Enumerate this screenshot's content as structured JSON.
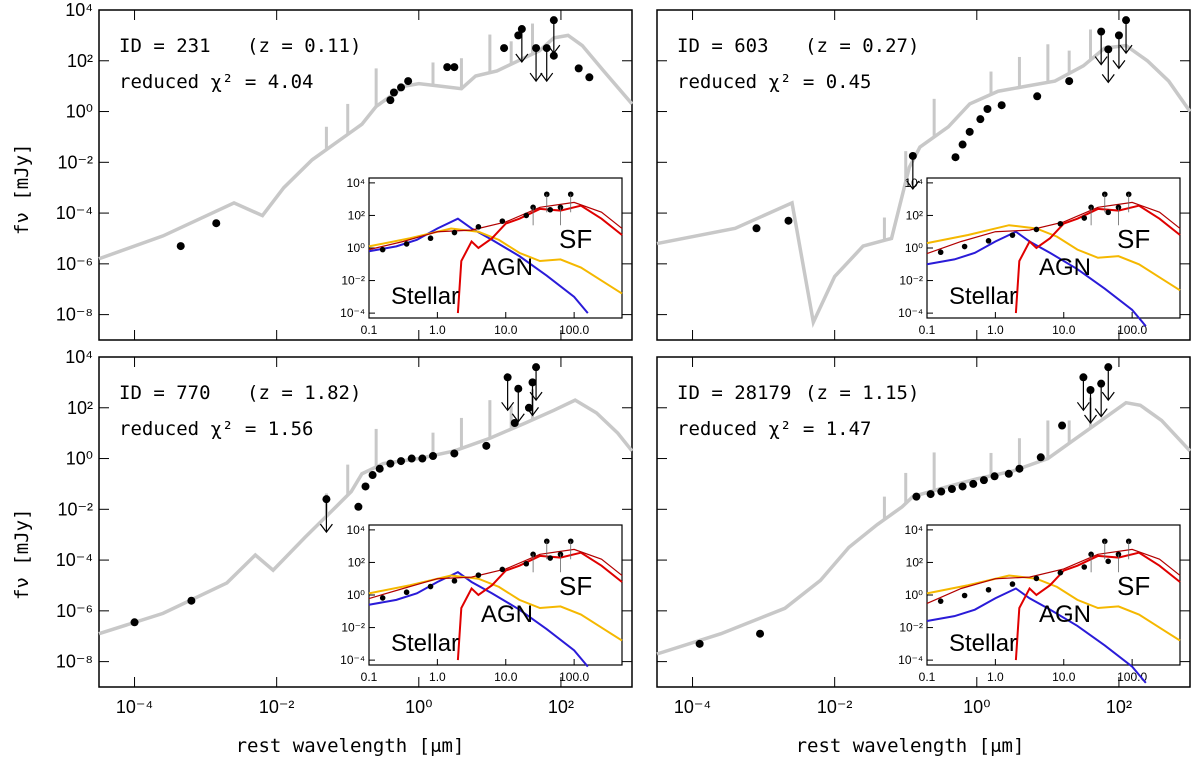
{
  "figure": {
    "xlabel": "rest wavelength [μm]",
    "ylabel": "fν [mJy]",
    "xlim_log10": [
      -4.5,
      3
    ],
    "ylim_log10": [
      -9,
      4
    ]
  },
  "colors": {
    "model": "#c8c8c8",
    "points": "#000000",
    "stellar": "#2a1bd8",
    "agn": "#f5b800",
    "sf": "#e00000",
    "sf_dark": "#b20000"
  },
  "chart_data": [
    {
      "type": "scatter",
      "id_text": "ID = 231",
      "z_text": "(z = 0.11)",
      "chi_text": "reduced χ² = 4.04",
      "x_log10": [
        -3.35,
        -2.85,
        -0.4,
        -0.35,
        -0.25,
        -0.15,
        0.4,
        0.5,
        1.2,
        1.4,
        1.9,
        2.25,
        2.4
      ],
      "y_log10": [
        -5.3,
        -4.4,
        0.45,
        0.75,
        0.95,
        1.2,
        1.75,
        1.75,
        2.5,
        3.0,
        2.2,
        1.7,
        1.35
      ],
      "upper_limits": [
        {
          "x": 1.45,
          "y": 3.25
        },
        {
          "x": 1.65,
          "y": 2.5
        },
        {
          "x": 1.8,
          "y": 2.5
        },
        {
          "x": 1.9,
          "y": 3.6
        }
      ],
      "inset": {
        "x_ticks": [
          "0.1",
          "1.0",
          "10.0",
          "100.0"
        ],
        "y_ticks": [
          "10⁴",
          "10²",
          "10⁰",
          "10⁻²",
          "10⁻⁴"
        ],
        "labels": {
          "stellar": "Stellar",
          "agn": "AGN",
          "sf": "SF"
        }
      }
    },
    {
      "type": "scatter",
      "id_text": "ID = 603",
      "z_text": "(z = 0.27)",
      "chi_text": "reduced χ² = 0.45",
      "x_log10": [
        -3.1,
        -2.65,
        -0.3,
        -0.2,
        -0.1,
        0.05,
        0.15,
        0.35,
        0.85,
        1.3
      ],
      "y_log10": [
        -4.6,
        -4.3,
        -1.8,
        -1.3,
        -0.8,
        -0.3,
        0.1,
        0.25,
        0.6,
        1.2
      ],
      "upper_limits": [
        {
          "x": -0.9,
          "y": -1.75
        },
        {
          "x": 1.75,
          "y": 3.15
        },
        {
          "x": 1.85,
          "y": 2.45
        },
        {
          "x": 2.0,
          "y": 3.0
        },
        {
          "x": 2.1,
          "y": 3.6
        }
      ],
      "inset": {
        "x_ticks": [
          "0.1",
          "1.0",
          "10.0",
          "100.0"
        ],
        "y_ticks": [
          "10⁴",
          "10²",
          "10⁰",
          "10⁻²",
          "10⁻⁴"
        ],
        "labels": {
          "stellar": "Stellar",
          "agn": "AGN",
          "sf": "SF"
        }
      }
    },
    {
      "type": "scatter",
      "id_text": "ID = 770",
      "z_text": "(z = 1.82)",
      "chi_text": "reduced χ² = 1.56",
      "x_log10": [
        -4.0,
        -3.2,
        -0.85,
        -0.75,
        -0.65,
        -0.55,
        -0.4,
        -0.25,
        -0.1,
        0.05,
        0.2,
        0.5,
        0.95,
        1.35,
        1.55
      ],
      "y_log10": [
        -6.45,
        -5.6,
        -1.9,
        -1.1,
        -0.65,
        -0.4,
        -0.2,
        -0.1,
        0,
        0,
        0.1,
        0.2,
        0.5,
        1.4,
        2.0
      ],
      "upper_limits": [
        {
          "x": -1.3,
          "y": -1.6
        },
        {
          "x": 1.25,
          "y": 3.2
        },
        {
          "x": 1.4,
          "y": 2.75
        },
        {
          "x": 1.6,
          "y": 3.0
        },
        {
          "x": 1.65,
          "y": 3.6
        }
      ],
      "inset": {
        "x_ticks": [
          "0.1",
          "1.0",
          "10.0",
          "100.0"
        ],
        "y_ticks": [
          "10⁴",
          "10²",
          "10⁰",
          "10⁻²",
          "10⁻⁴"
        ],
        "labels": {
          "stellar": "Stellar",
          "agn": "AGN",
          "sf": "SF"
        }
      }
    },
    {
      "type": "scatter",
      "id_text": "ID = 28179",
      "z_text": "(z = 1.15)",
      "chi_text": "reduced χ² = 1.47",
      "x_log10": [
        -3.9,
        -3.05,
        -0.85,
        -0.65,
        -0.5,
        -0.35,
        -0.2,
        -0.05,
        0.1,
        0.25,
        0.45,
        0.6,
        0.9,
        1.2
      ],
      "y_log10": [
        -7.3,
        -6.9,
        -1.5,
        -1.4,
        -1.3,
        -1.2,
        -1.1,
        -1.0,
        -0.85,
        -0.7,
        -0.6,
        -0.4,
        0.05,
        1.3
      ],
      "upper_limits": [
        {
          "x": 1.5,
          "y": 3.2
        },
        {
          "x": 1.6,
          "y": 2.7
        },
        {
          "x": 1.75,
          "y": 2.95
        },
        {
          "x": 1.85,
          "y": 3.6
        }
      ],
      "inset": {
        "x_ticks": [
          "0.1",
          "1.0",
          "10.0",
          "100.0"
        ],
        "y_ticks": [
          "10⁴",
          "10²",
          "10⁰",
          "10⁻²",
          "10⁻⁴"
        ],
        "labels": {
          "stellar": "Stellar",
          "agn": "AGN",
          "sf": "SF"
        }
      }
    }
  ],
  "x_tick_labels": [
    "10⁻⁴",
    "10⁻²",
    "10⁰",
    "10²"
  ],
  "y_tick_labels": [
    "10⁴",
    "10²",
    "10⁰",
    "10⁻²",
    "10⁻⁴",
    "10⁻⁶",
    "10⁻⁸"
  ]
}
